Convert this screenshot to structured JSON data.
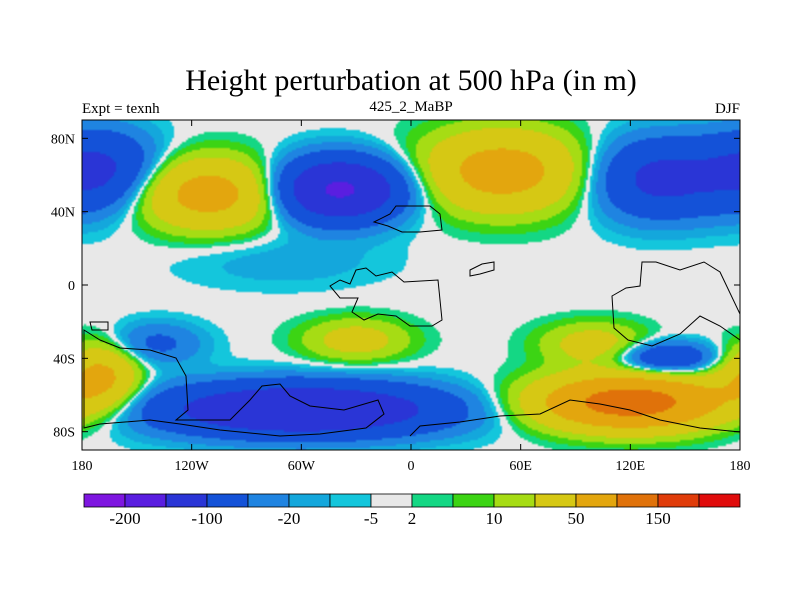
{
  "chart_data": {
    "type": "heatmap",
    "title": "Height perturbation at 500 hPa (in m)",
    "left_label": "Expt = texnh",
    "center_label": "425_2_MaBP",
    "right_label": "DJF",
    "x_ticks": [
      "180",
      "120W",
      "60W",
      "0",
      "60E",
      "120E",
      "180"
    ],
    "x_tick_values": [
      -180,
      -120,
      -60,
      0,
      60,
      120,
      180
    ],
    "y_ticks": [
      "80N",
      "40N",
      "0",
      "40S",
      "80S"
    ],
    "y_tick_values": [
      80,
      40,
      0,
      -40,
      -80
    ],
    "xlim": [
      -180,
      180
    ],
    "ylim": [
      -90,
      90
    ],
    "colorbar": {
      "colors": [
        "#7e16e0",
        "#5a1ee0",
        "#2a35d6",
        "#1452d8",
        "#1f84e1",
        "#14a7dc",
        "#14c6dc",
        "#e8e8e8",
        "#14d784",
        "#3cd414",
        "#a6dc14",
        "#d6c814",
        "#e3a60e",
        "#e0720a",
        "#e03c0a",
        "#e00c0c"
      ],
      "levels": [
        "-200",
        "-100",
        "-20",
        "-5",
        "2",
        "10",
        "50",
        "150"
      ],
      "level_boundaries": [
        7,
        6,
        5,
        4,
        3,
        2,
        1,
        0
      ],
      "label_boundary_index": [
        1,
        3,
        5,
        7,
        8,
        10,
        12,
        14
      ]
    },
    "field": {
      "description_units": "m",
      "components": [
        {
          "lon": -110,
          "lat": 50,
          "amp": 70,
          "slon": 28,
          "slat": 13
        },
        {
          "lon": -40,
          "lat": 52,
          "amp": -110,
          "slon": 25,
          "slat": 12
        },
        {
          "lon": 50,
          "lat": 62,
          "amp": 70,
          "slon": 30,
          "slat": 15
        },
        {
          "lon": 135,
          "lat": 58,
          "amp": -60,
          "slon": 25,
          "slat": 15
        },
        {
          "lon": -170,
          "lat": 62,
          "amp": -60,
          "slon": 22,
          "slat": 15
        },
        {
          "lon": -60,
          "lat": -68,
          "amp": -100,
          "slon": 55,
          "slat": 10
        },
        {
          "lon": -140,
          "lat": -32,
          "amp": -25,
          "slon": 18,
          "slat": 8
        },
        {
          "lon": 120,
          "lat": -64,
          "amp": 130,
          "slon": 35,
          "slat": 10
        },
        {
          "lon": 100,
          "lat": -32,
          "amp": 30,
          "slon": 20,
          "slat": 8
        },
        {
          "lon": 140,
          "lat": -40,
          "amp": -50,
          "slon": 18,
          "slat": 6
        },
        {
          "lon": -170,
          "lat": -50,
          "amp": 60,
          "slon": 14,
          "slat": 12
        },
        {
          "lon": -70,
          "lat": 12,
          "amp": -8,
          "slon": 40,
          "slat": 10
        },
        {
          "lon": -30,
          "lat": -30,
          "amp": 30,
          "slon": 20,
          "slat": 8
        }
      ]
    }
  }
}
